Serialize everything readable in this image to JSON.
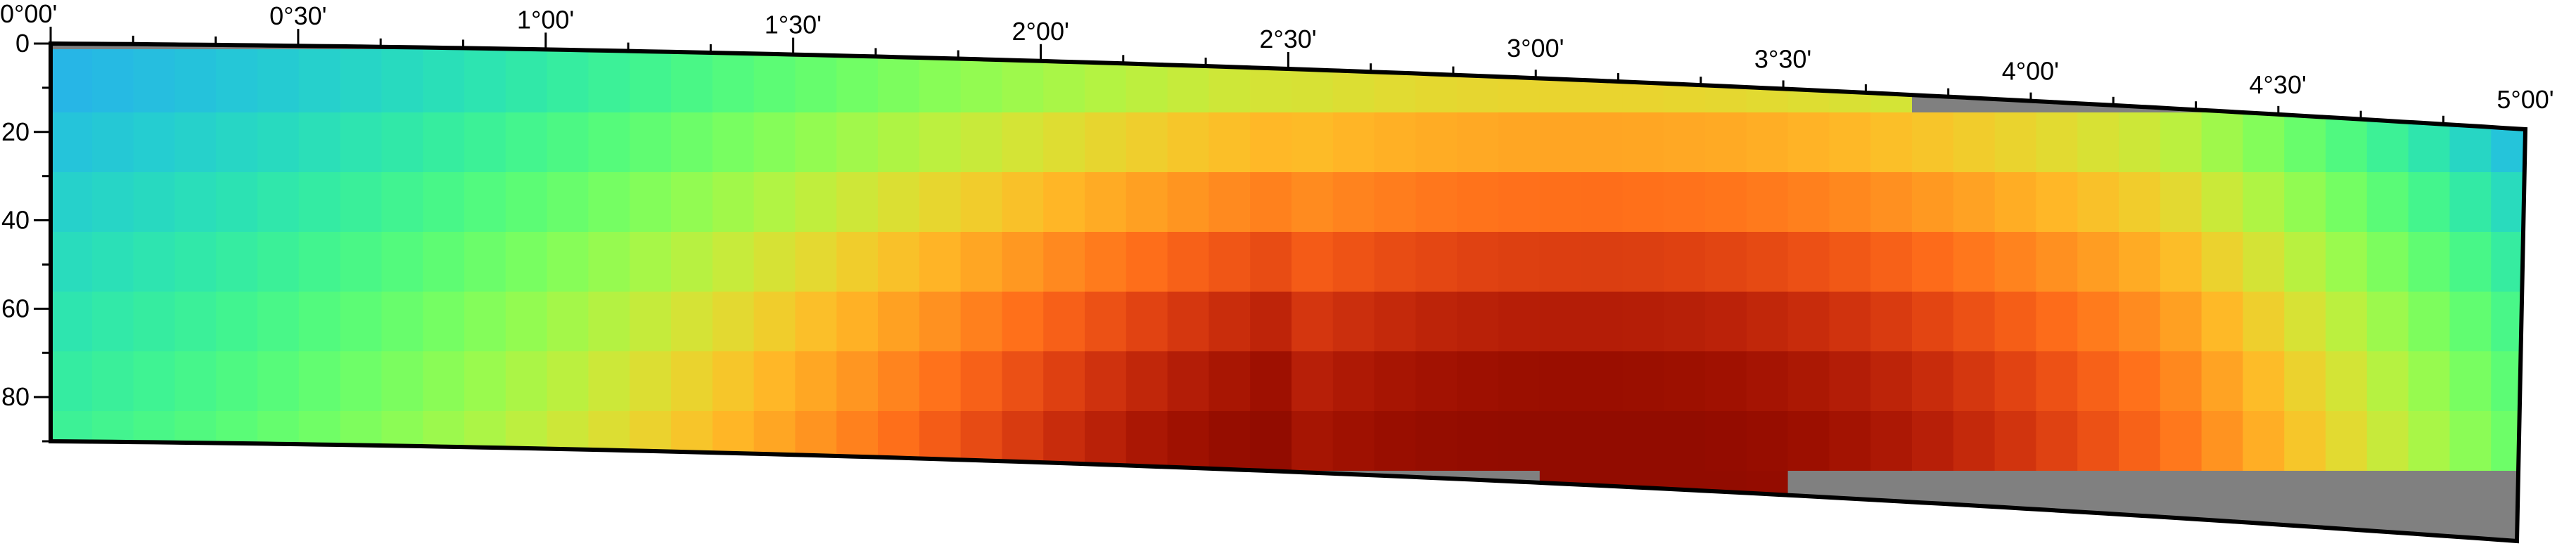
{
  "map": {
    "projection": "oblique / conic section (curved top and bottom frame)",
    "top_axis": {
      "labels": [
        "0°00'",
        "0°30'",
        "1°00'",
        "1°30'",
        "2°00'",
        "2°30'",
        "3°00'",
        "3°30'",
        "4°00'",
        "4°30'",
        "5°00'"
      ],
      "values_deg": [
        0,
        0.5,
        1,
        1.5,
        2,
        2.5,
        3,
        3.5,
        4,
        4.5,
        5
      ],
      "minor_step_deg": 0.1667
    },
    "left_axis": {
      "labels": [
        "0",
        "20",
        "40",
        "60",
        "80"
      ],
      "values": [
        0,
        20,
        40,
        60,
        80
      ],
      "range": [
        0,
        90
      ],
      "minor_step": 10
    },
    "grid": {
      "columns": 60,
      "rows": 7,
      "column_step_deg": 0.0833,
      "row_step": 13
    },
    "colormap": "turbo",
    "nodata_color": "#808080",
    "frame_color": "#000000"
  }
}
